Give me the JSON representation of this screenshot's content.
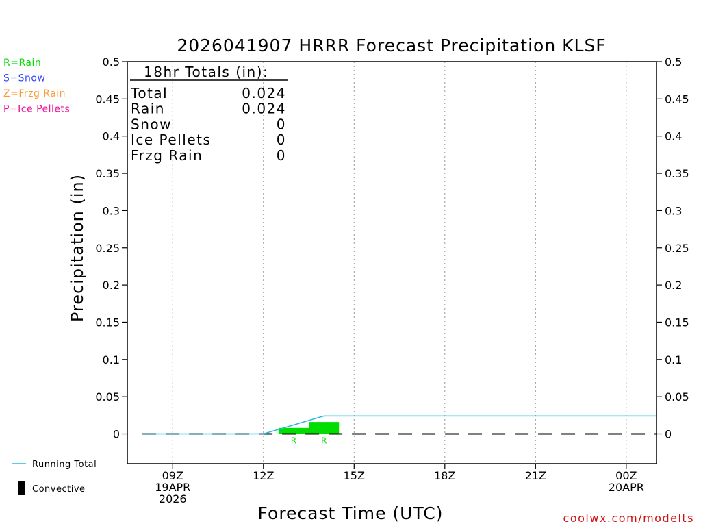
{
  "chart_data": {
    "type": "bar",
    "title": "2026041907 HRRR Forecast Precipitation KLSF",
    "xlabel": "Forecast Time (UTC)",
    "ylabel": "Precipitation (in)",
    "ylim": [
      -0.04,
      0.5
    ],
    "y_ticks": [
      "0.5",
      "0.45",
      "0.4",
      "0.35",
      "0.3",
      "0.25",
      "0.2",
      "0.15",
      "0.1",
      "0.05",
      "0"
    ],
    "y_tick_values": [
      0.5,
      0.45,
      0.4,
      0.35,
      0.3,
      0.25,
      0.2,
      0.15,
      0.1,
      0.05,
      0
    ],
    "x_range_hours": [
      7.5,
      25.0
    ],
    "x_ticks": [
      {
        "hour": 9,
        "lines": [
          "09Z",
          "19APR",
          "2026"
        ]
      },
      {
        "hour": 12,
        "lines": [
          "12Z"
        ]
      },
      {
        "hour": 15,
        "lines": [
          "15Z"
        ]
      },
      {
        "hour": 18,
        "lines": [
          "18Z"
        ]
      },
      {
        "hour": 21,
        "lines": [
          "21Z"
        ]
      },
      {
        "hour": 24,
        "lines": [
          "00Z",
          "20APR"
        ]
      }
    ],
    "bars": [
      {
        "start_hour": 12.5,
        "end_hour": 13.5,
        "value": 0.008,
        "type_label": "R",
        "type": "Rain"
      },
      {
        "start_hour": 13.5,
        "end_hour": 14.5,
        "value": 0.016,
        "type_label": "R",
        "type": "Rain"
      }
    ],
    "running_total": {
      "name": "Running Total",
      "hours": [
        8,
        12,
        14,
        25
      ],
      "values": [
        0,
        0,
        0.024,
        0.024
      ]
    },
    "colors": {
      "rain": "#00dd00",
      "snow": "#3344ff",
      "frzg_rain": "#ff9933",
      "ice_pellets": "#ee1199",
      "running_total": "#22bbdd",
      "convective": "#000000",
      "grid": "#999999"
    }
  },
  "type_legend": [
    {
      "text": "R=Rain",
      "color": "#00dd00"
    },
    {
      "text": "S=Snow",
      "color": "#3344ff"
    },
    {
      "text": "Z=Frzg Rain",
      "color": "#ff9933"
    },
    {
      "text": "P=Ice Pellets",
      "color": "#ee1199"
    }
  ],
  "totals_box": {
    "heading": "18hr Totals (in):",
    "rows": [
      {
        "label": "Total",
        "value": "0.024"
      },
      {
        "label": "Rain",
        "value": "0.024"
      },
      {
        "label": "Snow",
        "value": "0"
      },
      {
        "label": "Ice Pellets",
        "value": "0"
      },
      {
        "label": "Frzg Rain",
        "value": "0"
      }
    ]
  },
  "bottom_legend": {
    "running_total": "Running Total",
    "convective": "Convective"
  },
  "credit": "coolwx.com/modelts"
}
